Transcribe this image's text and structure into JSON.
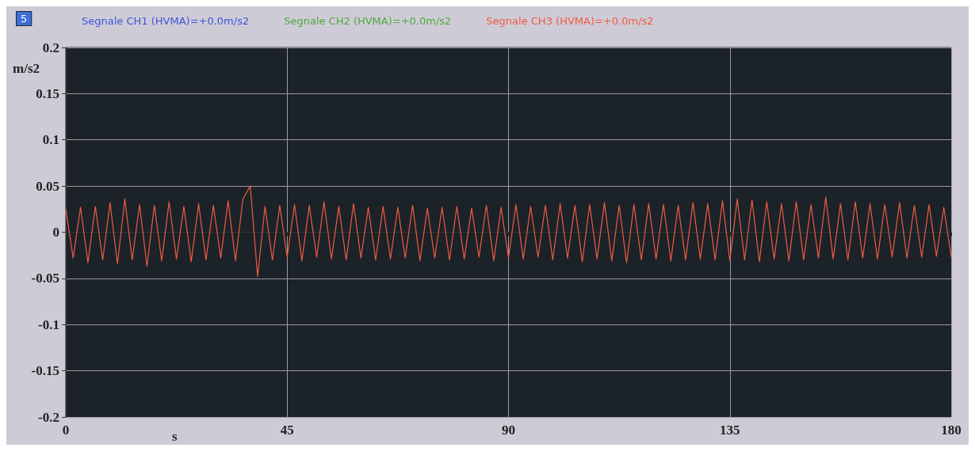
{
  "chart_data": {
    "type": "line",
    "xlabel": "s",
    "ylabel": "m/s2",
    "annotations": [
      "5"
    ],
    "x": [
      0,
      1.5,
      3,
      4.5,
      6,
      7.5,
      9,
      10.5,
      12,
      13.5,
      15,
      16.5,
      18,
      19.5,
      21,
      22.5,
      24,
      25.5,
      27,
      28.5,
      30,
      31.5,
      33,
      34.5,
      36,
      37.5,
      39,
      40.5,
      42,
      43.5,
      45,
      46.5,
      48,
      49.5,
      51,
      52.5,
      54,
      55.5,
      57,
      58.5,
      60,
      61.5,
      63,
      64.5,
      66,
      67.5,
      69,
      70.5,
      72,
      73.5,
      75,
      76.5,
      78,
      79.5,
      81,
      82.5,
      84,
      85.5,
      87,
      88.5,
      90,
      91.5,
      93,
      94.5,
      96,
      97.5,
      99,
      100.5,
      102,
      103.5,
      105,
      106.5,
      108,
      109.5,
      111,
      112.5,
      114,
      115.5,
      117,
      118.5,
      120,
      121.5,
      123,
      124.5,
      126,
      127.5,
      129,
      130.5,
      132,
      133.5,
      135,
      136.5,
      138,
      139.5,
      141,
      142.5,
      144,
      145.5,
      147,
      148.5,
      150,
      151.5,
      153,
      154.5,
      156,
      157.5,
      159,
      160.5,
      162,
      163.5,
      165,
      166.5,
      168,
      169.5,
      171,
      172.5,
      174,
      175.5,
      177,
      178.5,
      180
    ],
    "series": [
      {
        "name": "Segnale CH1 (HVMA)=+0.0m/s2",
        "color": "#3a56d8",
        "values": [
          null,
          null,
          null,
          null,
          null,
          null,
          null,
          null,
          null,
          null,
          null,
          null,
          null,
          null,
          null,
          null,
          null,
          null,
          null,
          null,
          null,
          null,
          null,
          null,
          null,
          null,
          null,
          null,
          null,
          null,
          null,
          null,
          null,
          null,
          null,
          null,
          null,
          null,
          null,
          null,
          null,
          null,
          null,
          null,
          null,
          null,
          null,
          null,
          null,
          null,
          null,
          null,
          null,
          null,
          null,
          null,
          null,
          null,
          null,
          null,
          null,
          null,
          null,
          null,
          null,
          null,
          null,
          null,
          null,
          null,
          null,
          null,
          null,
          null,
          null,
          null,
          null,
          null,
          null,
          null,
          null,
          null,
          null,
          null,
          null,
          null,
          null,
          null,
          null,
          null,
          null,
          null,
          null,
          null,
          null,
          null,
          null,
          null,
          null,
          null,
          null,
          null,
          null,
          null,
          null,
          null,
          null,
          null,
          null,
          null,
          null,
          null,
          null,
          null,
          null,
          null,
          null,
          null,
          null,
          null,
          null
        ]
      },
      {
        "name": "Segnale CH2 (HVMA)=+0.0m/s2",
        "color": "#4caa3c",
        "values": [
          null,
          null,
          null,
          null,
          null,
          null,
          null,
          null,
          null,
          null,
          null,
          null,
          null,
          null,
          null,
          null,
          null,
          null,
          null,
          null,
          null,
          null,
          null,
          null,
          null,
          null,
          null,
          null,
          null,
          null,
          null,
          null,
          null,
          null,
          null,
          null,
          null,
          null,
          null,
          null,
          null,
          null,
          null,
          null,
          null,
          null,
          null,
          null,
          null,
          null,
          null,
          null,
          null,
          null,
          null,
          null,
          null,
          null,
          null,
          null,
          null,
          null,
          null,
          null,
          null,
          null,
          null,
          null,
          null,
          null,
          null,
          null,
          null,
          null,
          null,
          null,
          null,
          null,
          null,
          null,
          null,
          null,
          null,
          null,
          null,
          null,
          null,
          null,
          null,
          null,
          null,
          null,
          null,
          null,
          null,
          null,
          null,
          null,
          null,
          null,
          null,
          null,
          null,
          null,
          null,
          null,
          null,
          null,
          null,
          null,
          null,
          null,
          null,
          null,
          null,
          null,
          null,
          null,
          null,
          null,
          null
        ]
      },
      {
        "name": "Segnale CH3 (HVMA)=+0.0m/s2",
        "color": "#f05a40",
        "values": [
          0.025,
          -0.028,
          0.027,
          -0.033,
          0.028,
          -0.03,
          0.032,
          -0.034,
          0.036,
          -0.03,
          0.03,
          -0.037,
          0.029,
          -0.031,
          0.033,
          -0.029,
          0.028,
          -0.032,
          0.031,
          -0.03,
          0.029,
          -0.028,
          0.034,
          -0.031,
          0.036,
          0.05,
          -0.048,
          0.028,
          -0.03,
          0.029,
          -0.027,
          0.03,
          -0.031,
          0.029,
          -0.027,
          0.033,
          -0.029,
          0.028,
          -0.03,
          0.031,
          -0.028,
          0.027,
          -0.03,
          0.028,
          -0.029,
          0.027,
          -0.028,
          0.029,
          -0.031,
          0.026,
          -0.028,
          0.027,
          -0.03,
          0.028,
          -0.029,
          0.026,
          -0.027,
          0.029,
          -0.031,
          0.027,
          -0.028,
          0.03,
          -0.029,
          0.028,
          -0.027,
          0.029,
          -0.03,
          0.031,
          -0.028,
          0.029,
          -0.032,
          0.03,
          -0.029,
          0.032,
          -0.031,
          0.029,
          -0.033,
          0.03,
          -0.03,
          0.031,
          -0.029,
          0.03,
          -0.031,
          0.029,
          -0.03,
          0.032,
          -0.029,
          0.031,
          -0.03,
          0.034,
          -0.031,
          0.036,
          -0.03,
          0.035,
          -0.032,
          0.033,
          -0.029,
          0.031,
          -0.031,
          0.033,
          -0.03,
          0.03,
          -0.028,
          0.038,
          -0.029,
          0.031,
          -0.03,
          0.033,
          -0.028,
          0.031,
          -0.029,
          0.03,
          -0.027,
          0.032,
          -0.028,
          0.029,
          -0.027,
          0.03,
          -0.026,
          0.027,
          -0.027
        ]
      }
    ],
    "xlim": [
      0,
      180
    ],
    "xticks": [
      0,
      45,
      90,
      135,
      180
    ],
    "ylim": [
      -0.2,
      0.2
    ],
    "yticks": [
      -0.2,
      -0.15,
      -0.1,
      -0.05,
      0,
      0.05,
      0.1,
      0.15,
      0.2
    ],
    "grid": true,
    "legend": "top",
    "marker": "none",
    "line_style": "solid"
  }
}
